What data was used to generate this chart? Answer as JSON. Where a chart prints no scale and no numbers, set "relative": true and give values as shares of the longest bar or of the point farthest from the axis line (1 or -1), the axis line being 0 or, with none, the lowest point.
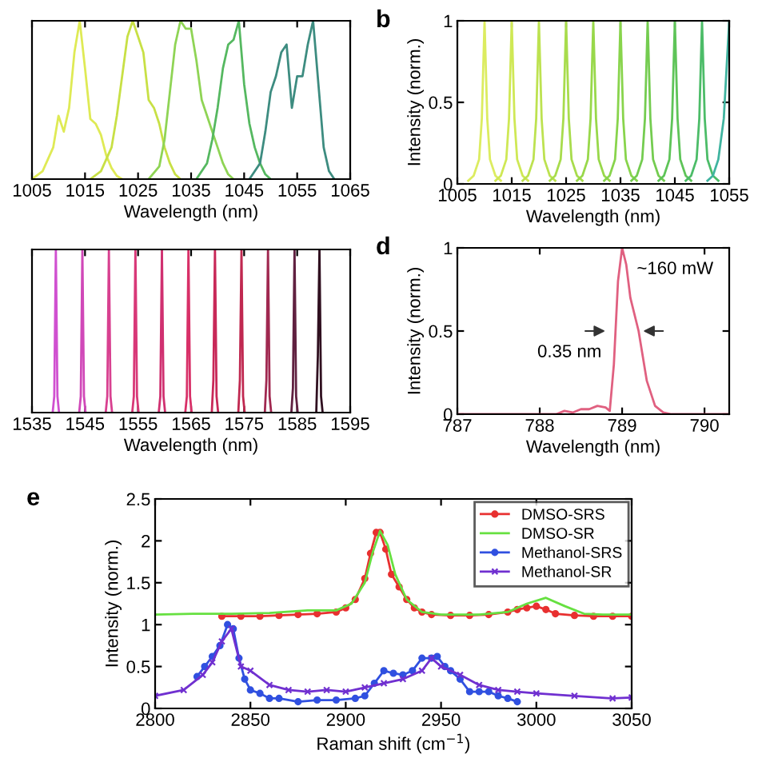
{
  "chart_data": [
    {
      "type": "line",
      "relative": true,
      "xlabel": "Wavelength (nm)",
      "xlim": [
        1005,
        1065
      ],
      "xticks": [
        1005,
        1015,
        1025,
        1035,
        1045,
        1055,
        1065
      ],
      "series": [
        {
          "color": "#dfea55",
          "x": [
            1005,
            1007,
            1009,
            1010,
            1011,
            1012,
            1013,
            1014,
            1015,
            1016,
            1017,
            1018,
            1019,
            1020,
            1021,
            1022
          ],
          "values": [
            0,
            0.05,
            0.2,
            0.4,
            0.3,
            0.45,
            0.8,
            1.0,
            0.7,
            0.38,
            0.35,
            0.28,
            0.15,
            0.07,
            0.02,
            0
          ]
        },
        {
          "color": "#c8e045",
          "x": [
            1016,
            1018,
            1020,
            1021,
            1022,
            1023,
            1024,
            1025,
            1026,
            1027,
            1028,
            1029,
            1030,
            1031,
            1032,
            1033
          ],
          "values": [
            0,
            0.05,
            0.2,
            0.4,
            0.65,
            0.9,
            1.0,
            0.9,
            0.8,
            0.5,
            0.45,
            0.35,
            0.2,
            0.1,
            0.03,
            0
          ]
        },
        {
          "color": "#8fd455",
          "x": [
            1027,
            1029,
            1030,
            1031,
            1032,
            1033,
            1034,
            1035,
            1036,
            1037,
            1038,
            1039,
            1040,
            1041,
            1042,
            1043
          ],
          "values": [
            0,
            0.08,
            0.25,
            0.55,
            0.85,
            1.0,
            0.95,
            0.95,
            0.75,
            0.5,
            0.4,
            0.3,
            0.2,
            0.1,
            0.03,
            0
          ]
        },
        {
          "color": "#55b860",
          "x": [
            1036,
            1038,
            1039,
            1040,
            1041,
            1042,
            1043,
            1044,
            1045,
            1046,
            1047,
            1048,
            1049,
            1050
          ],
          "values": [
            0,
            0.1,
            0.25,
            0.45,
            0.7,
            0.85,
            0.88,
            1.0,
            0.6,
            0.35,
            0.2,
            0.1,
            0.03,
            0
          ]
        },
        {
          "color": "#3d8c80",
          "x": [
            1046,
            1048,
            1049,
            1050,
            1051,
            1052,
            1053,
            1054,
            1055,
            1056,
            1057,
            1058,
            1059,
            1060,
            1061,
            1062
          ],
          "values": [
            0,
            0.1,
            0.3,
            0.55,
            0.65,
            0.8,
            0.85,
            0.45,
            0.65,
            0.65,
            0.85,
            1.0,
            0.6,
            0.2,
            0.05,
            0
          ]
        }
      ]
    },
    {
      "type": "line",
      "title": "b",
      "xlabel": "Wavelength (nm)",
      "ylabel": "Intensity (norm.)",
      "xlim": [
        1005,
        1055
      ],
      "xticks": [
        1005,
        1015,
        1025,
        1035,
        1045,
        1055
      ],
      "ylim": [
        0,
        1
      ],
      "yticks": [
        0,
        0.5,
        1
      ],
      "series": [
        {
          "color": "#dcec60",
          "x": [
            1007,
            1008,
            1009,
            1009.5,
            1010,
            1010.5,
            1011,
            1012,
            1013
          ],
          "values": [
            0.02,
            0.05,
            0.15,
            0.4,
            1,
            0.4,
            0.15,
            0.05,
            0.02
          ]
        },
        {
          "color": "#cfe855",
          "x": [
            1012,
            1013,
            1014,
            1014.5,
            1015,
            1015.5,
            1016,
            1017,
            1018
          ],
          "values": [
            0.02,
            0.05,
            0.15,
            0.4,
            1,
            0.4,
            0.15,
            0.05,
            0.02
          ]
        },
        {
          "color": "#bde250",
          "x": [
            1017,
            1018,
            1019,
            1019.5,
            1020,
            1020.5,
            1021,
            1022,
            1023
          ],
          "values": [
            0.02,
            0.05,
            0.15,
            0.4,
            1,
            0.4,
            0.15,
            0.05,
            0.02
          ]
        },
        {
          "color": "#a8dc4c",
          "x": [
            1022,
            1023,
            1024,
            1024.5,
            1025,
            1025.5,
            1026,
            1027,
            1028
          ],
          "values": [
            0.02,
            0.05,
            0.15,
            0.4,
            1,
            0.4,
            0.15,
            0.05,
            0.02
          ]
        },
        {
          "color": "#98d84a",
          "x": [
            1027,
            1028,
            1029,
            1029.5,
            1030,
            1030.5,
            1031,
            1032,
            1033
          ],
          "values": [
            0.02,
            0.05,
            0.15,
            0.4,
            1,
            0.4,
            0.15,
            0.05,
            0.02
          ]
        },
        {
          "color": "#88d44c",
          "x": [
            1032,
            1033,
            1034,
            1034.5,
            1035,
            1035.5,
            1036,
            1037,
            1038
          ],
          "values": [
            0.02,
            0.05,
            0.15,
            0.4,
            1,
            0.4,
            0.15,
            0.05,
            0.02
          ]
        },
        {
          "color": "#74cc50",
          "x": [
            1037,
            1038,
            1039,
            1039.5,
            1040,
            1040.5,
            1041,
            1042,
            1043
          ],
          "values": [
            0.02,
            0.05,
            0.15,
            0.4,
            1,
            0.4,
            0.15,
            0.05,
            0.02
          ]
        },
        {
          "color": "#5ec458",
          "x": [
            1042,
            1043,
            1044,
            1044.5,
            1045,
            1045.5,
            1046,
            1047,
            1048
          ],
          "values": [
            0.02,
            0.05,
            0.15,
            0.4,
            1,
            0.4,
            0.15,
            0.05,
            0.02
          ]
        },
        {
          "color": "#4cbc68",
          "x": [
            1047,
            1048,
            1049,
            1049.5,
            1050,
            1050.5,
            1051,
            1052,
            1053
          ],
          "values": [
            0.02,
            0.05,
            0.15,
            0.4,
            1,
            0.4,
            0.15,
            0.05,
            0.02
          ]
        },
        {
          "color": "#40b4a0",
          "x": [
            1051,
            1052,
            1053,
            1054,
            1055
          ],
          "values": [
            0.02,
            0.05,
            0.15,
            0.4,
            1
          ]
        }
      ]
    },
    {
      "type": "line",
      "relative": true,
      "xlabel": "Wavelength (nm)",
      "xlim": [
        1535,
        1595
      ],
      "xticks": [
        1535,
        1545,
        1555,
        1565,
        1575,
        1585,
        1595
      ],
      "series": [
        {
          "color": "#d050d0",
          "x": [
            1538.9,
            1539.2,
            1539.5,
            1539.8,
            1540.1
          ],
          "values": [
            0,
            0.1,
            1,
            0.1,
            0
          ]
        },
        {
          "color": "#d048b8",
          "x": [
            1543.9,
            1544.2,
            1544.5,
            1544.8,
            1545.1
          ],
          "values": [
            0,
            0.1,
            1,
            0.1,
            0
          ]
        },
        {
          "color": "#d84090",
          "x": [
            1548.9,
            1549.2,
            1549.5,
            1549.8,
            1550.1
          ],
          "values": [
            0,
            0.1,
            1,
            0.1,
            0
          ]
        },
        {
          "color": "#d83878",
          "x": [
            1553.9,
            1554.2,
            1554.5,
            1554.8,
            1555.1
          ],
          "values": [
            0,
            0.1,
            1,
            0.1,
            0
          ]
        },
        {
          "color": "#d03070",
          "x": [
            1558.9,
            1559.2,
            1559.5,
            1559.8,
            1560.1
          ],
          "values": [
            0,
            0.1,
            1,
            0.1,
            0
          ]
        },
        {
          "color": "#d83068",
          "x": [
            1563.9,
            1564.2,
            1564.5,
            1564.8,
            1565.1
          ],
          "values": [
            0,
            0.1,
            1,
            0.1,
            0
          ]
        },
        {
          "color": "#c82858",
          "x": [
            1568.9,
            1569.2,
            1569.5,
            1569.8,
            1570.1
          ],
          "values": [
            0,
            0.2,
            1,
            0.1,
            0
          ]
        },
        {
          "color": "#c02850",
          "x": [
            1573.9,
            1574.2,
            1574.5,
            1574.8,
            1575.1
          ],
          "values": [
            0,
            0.2,
            1,
            0.1,
            0
          ]
        },
        {
          "color": "#a02850",
          "x": [
            1578.9,
            1579.2,
            1579.5,
            1579.8,
            1580.1
          ],
          "values": [
            0,
            0.2,
            1,
            0.1,
            0
          ]
        },
        {
          "color": "#602040",
          "x": [
            1583.9,
            1584.2,
            1584.5,
            1584.8,
            1585.1
          ],
          "values": [
            0,
            0.15,
            1,
            0.1,
            0
          ]
        },
        {
          "color": "#301020",
          "x": [
            1588.6,
            1588.9,
            1589.2,
            1589.5,
            1589.8
          ],
          "values": [
            0,
            0.35,
            1,
            0.1,
            0
          ]
        }
      ]
    },
    {
      "type": "line",
      "title": "d",
      "xlabel": "Wavelength (nm)",
      "ylabel": "Intensity (norm.)",
      "xlim": [
        787,
        790.3
      ],
      "xticks": [
        787,
        788,
        789,
        790
      ],
      "ylim": [
        0,
        1
      ],
      "yticks": [
        0,
        0.5,
        1
      ],
      "annotations": [
        {
          "text": "0.35 nm",
          "x": 788.85,
          "y": 0.5
        },
        "~160 mW"
      ],
      "series": [
        {
          "color": "#e06080",
          "x": [
            787,
            788,
            788.2,
            788.3,
            788.4,
            788.5,
            788.6,
            788.7,
            788.8,
            788.85,
            788.9,
            788.95,
            789.0,
            789.05,
            789.1,
            789.2,
            789.3,
            789.4,
            789.5,
            789.6,
            790.3
          ],
          "values": [
            0,
            0,
            0,
            0.02,
            0.01,
            0.03,
            0.03,
            0.05,
            0.04,
            0.02,
            0.3,
            0.8,
            1,
            0.9,
            0.7,
            0.5,
            0.2,
            0.05,
            0.01,
            0,
            0
          ]
        }
      ]
    },
    {
      "type": "line",
      "title": "e",
      "xlabel": "Raman shift (cm$^{−1}$)",
      "ylabel": "Intensity (norm.)",
      "xlim": [
        2800,
        3050
      ],
      "xticks": [
        2800,
        2850,
        2900,
        2950,
        3000,
        3050
      ],
      "ylim": [
        0,
        2.5
      ],
      "yticks": [
        0,
        0.5,
        1,
        1.5,
        2,
        2.5
      ],
      "legend": "top right",
      "series": [
        {
          "name": "DMSO-SRS",
          "color": "#e83030",
          "marker": "circle",
          "x": [
            2835,
            2845,
            2855,
            2865,
            2875,
            2885,
            2895,
            2900,
            2905,
            2910,
            2913,
            2916,
            2918,
            2921,
            2924,
            2928,
            2932,
            2936,
            2940,
            2945,
            2955,
            2965,
            2975,
            2985,
            2990,
            2995,
            3000,
            3005,
            3010,
            3020,
            3030,
            3040,
            3050
          ],
          "values": [
            1.1,
            1.1,
            1.1,
            1.11,
            1.12,
            1.13,
            1.15,
            1.2,
            1.3,
            1.55,
            1.85,
            2.1,
            2.1,
            1.9,
            1.6,
            1.45,
            1.3,
            1.2,
            1.15,
            1.12,
            1.11,
            1.11,
            1.12,
            1.15,
            1.18,
            1.2,
            1.22,
            1.18,
            1.13,
            1.11,
            1.1,
            1.1,
            1.1
          ]
        },
        {
          "name": "DMSO-SR",
          "color": "#66e040",
          "marker": "none",
          "x": [
            2800,
            2820,
            2840,
            2860,
            2880,
            2895,
            2903,
            2910,
            2914,
            2918,
            2922,
            2926,
            2932,
            2940,
            2950,
            2970,
            2985,
            2995,
            3005,
            3015,
            3025,
            3035,
            3050
          ],
          "values": [
            1.12,
            1.13,
            1.13,
            1.14,
            1.17,
            1.17,
            1.25,
            1.5,
            1.85,
            2.12,
            1.95,
            1.6,
            1.3,
            1.15,
            1.12,
            1.12,
            1.15,
            1.25,
            1.32,
            1.22,
            1.13,
            1.12,
            1.12
          ]
        },
        {
          "name": "Methanol-SRS",
          "color": "#3050e0",
          "marker": "circle",
          "x": [
            2822,
            2826,
            2830,
            2834,
            2838,
            2841,
            2844,
            2847,
            2850,
            2855,
            2860,
            2865,
            2875,
            2885,
            2895,
            2905,
            2910,
            2915,
            2920,
            2925,
            2930,
            2935,
            2940,
            2945,
            2948,
            2952,
            2955,
            2960,
            2965,
            2970,
            2975,
            2980,
            2985,
            2990
          ],
          "values": [
            0.38,
            0.5,
            0.62,
            0.75,
            1.0,
            0.95,
            0.6,
            0.35,
            0.22,
            0.18,
            0.12,
            0.12,
            0.08,
            0.1,
            0.1,
            0.12,
            0.15,
            0.3,
            0.45,
            0.42,
            0.4,
            0.45,
            0.6,
            0.6,
            0.62,
            0.5,
            0.45,
            0.35,
            0.2,
            0.2,
            0.2,
            0.15,
            0.12,
            0.08
          ]
        },
        {
          "name": "Methanol-SR",
          "color": "#7030d0",
          "marker": "cross",
          "x": [
            2800,
            2815,
            2825,
            2830,
            2835,
            2840,
            2845,
            2850,
            2860,
            2870,
            2880,
            2890,
            2900,
            2910,
            2920,
            2930,
            2940,
            2945,
            2950,
            2960,
            2970,
            2980,
            2990,
            3000,
            3020,
            3040,
            3050
          ],
          "values": [
            0.15,
            0.22,
            0.4,
            0.55,
            0.8,
            0.95,
            0.5,
            0.45,
            0.28,
            0.22,
            0.2,
            0.22,
            0.2,
            0.25,
            0.3,
            0.35,
            0.45,
            0.6,
            0.5,
            0.4,
            0.28,
            0.22,
            0.2,
            0.18,
            0.15,
            0.12,
            0.13
          ]
        }
      ]
    }
  ]
}
